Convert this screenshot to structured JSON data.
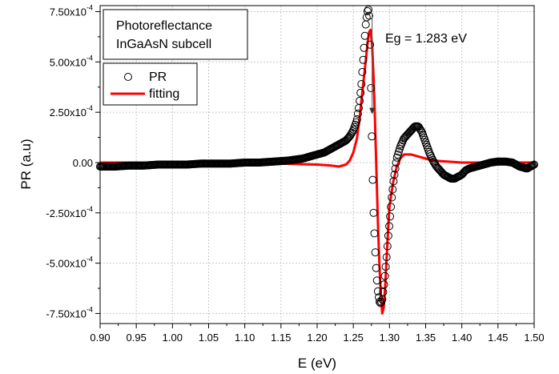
{
  "chart_data": {
    "type": "line",
    "xlabel": "E (eV)",
    "ylabel": "PR (a.u)",
    "xlim": [
      0.9,
      1.5
    ],
    "ylim": [
      -0.0008,
      0.00078
    ],
    "grid": true,
    "x_ticks": [
      0.9,
      0.95,
      1.0,
      1.05,
      1.1,
      1.15,
      1.2,
      1.25,
      1.3,
      1.35,
      1.4,
      1.45,
      1.5
    ],
    "x_tick_labels": [
      "0.90",
      "0.95",
      "1.00",
      "1.05",
      "1.10",
      "1.15",
      "1.20",
      "1.25",
      "1.30",
      "1.35",
      "1.40",
      "1.45",
      "1.50"
    ],
    "y_ticks": [
      -0.00075,
      -0.0005,
      -0.00025,
      0,
      0.00025,
      0.0005,
      0.00075
    ],
    "y_tick_labels": [
      {
        "mant": "-7.50x10",
        "exp": "-4"
      },
      {
        "mant": "-5.00x10",
        "exp": "-4"
      },
      {
        "mant": "-2.50x10",
        "exp": "-4"
      },
      {
        "mant": "0.00",
        "exp": ""
      },
      {
        "mant": "2.50x10",
        "exp": "-4"
      },
      {
        "mant": "5.00x10",
        "exp": "-4"
      },
      {
        "mant": "7.50x10",
        "exp": "-4"
      }
    ],
    "annotation_box": [
      "Photoreflectance",
      "InGaAsN subcell"
    ],
    "eg_annotation": {
      "text": "Eg = 1.283 eV",
      "x": 1.276,
      "y_start": 0.00074,
      "y_end": 0.00024
    },
    "legend_placement": "top-left",
    "series": [
      {
        "name": "PR",
        "style": "open-circle",
        "color": "#000000",
        "x": [
          0.9,
          0.92,
          0.94,
          0.96,
          0.98,
          1.0,
          1.02,
          1.04,
          1.06,
          1.08,
          1.1,
          1.12,
          1.14,
          1.16,
          1.18,
          1.19,
          1.2,
          1.21,
          1.22,
          1.225,
          1.23,
          1.235,
          1.24,
          1.245,
          1.25,
          1.255,
          1.258,
          1.261,
          1.263,
          1.265,
          1.267,
          1.269,
          1.27,
          1.271,
          1.272,
          1.273,
          1.274,
          1.275,
          1.276,
          1.277,
          1.278,
          1.28,
          1.282,
          1.284,
          1.286,
          1.288,
          1.29,
          1.292,
          1.294,
          1.296,
          1.298,
          1.3,
          1.303,
          1.306,
          1.31,
          1.315,
          1.32,
          1.325,
          1.33,
          1.335,
          1.34,
          1.345,
          1.35,
          1.355,
          1.36,
          1.365,
          1.37,
          1.375,
          1.38,
          1.385,
          1.39,
          1.395,
          1.4,
          1.405,
          1.41,
          1.42,
          1.43,
          1.44,
          1.45,
          1.46,
          1.47,
          1.48,
          1.49,
          1.5
        ],
        "y": [
          -2e-05,
          -2e-05,
          -1.5e-05,
          -1.5e-05,
          -1e-05,
          -1e-05,
          -1e-05,
          -5e-06,
          -5e-06,
          -5e-06,
          0,
          0,
          5e-06,
          1e-05,
          2e-05,
          3e-05,
          4e-05,
          5e-05,
          7e-05,
          8e-05,
          9e-05,
          0.0001,
          0.00011,
          0.00013,
          0.00016,
          0.00021,
          0.00028,
          0.00038,
          0.00048,
          0.00058,
          0.00068,
          0.00074,
          0.00076,
          0.00076,
          0.00073,
          0.00062,
          0.00045,
          0.00025,
          5e-05,
          -0.00012,
          -0.00025,
          -0.00042,
          -0.00055,
          -0.00064,
          -0.00069,
          -0.0007,
          -0.00068,
          -0.00062,
          -0.00055,
          -0.00047,
          -0.00038,
          -0.0003,
          -0.00018,
          -8e-05,
          2e-05,
          8e-05,
          0.00012,
          0.00014,
          0.00016,
          0.00018,
          0.00018,
          0.00015,
          0.0001,
          5e-05,
          1e-05,
          -2e-05,
          -4e-05,
          -6e-05,
          -7e-05,
          -8e-05,
          -8e-05,
          -7e-05,
          -6e-05,
          -4e-05,
          -3e-05,
          -2e-05,
          -1e-05,
          0,
          5e-06,
          5e-06,
          0,
          -2e-05,
          -3e-05,
          -1e-05
        ]
      },
      {
        "name": "fitting",
        "style": "line",
        "color": "#ff0000",
        "x": [
          0.9,
          1.0,
          1.1,
          1.15,
          1.2,
          1.22,
          1.23,
          1.24,
          1.245,
          1.25,
          1.255,
          1.258,
          1.261,
          1.264,
          1.267,
          1.27,
          1.272,
          1.274,
          1.276,
          1.278,
          1.28,
          1.282,
          1.284,
          1.286,
          1.288,
          1.29,
          1.292,
          1.294,
          1.296,
          1.298,
          1.3,
          1.305,
          1.31,
          1.315,
          1.32,
          1.33,
          1.34,
          1.35,
          1.36,
          1.38,
          1.4,
          1.42,
          1.45,
          1.5
        ],
        "y": [
          0,
          0,
          -5e-06,
          -5e-06,
          -1e-05,
          -1.5e-05,
          -2e-05,
          -1e-05,
          1e-05,
          5e-05,
          0.00012,
          0.0002,
          0.0003,
          0.0004,
          0.0005,
          0.0006,
          0.00065,
          0.00066,
          0.00058,
          0.00042,
          0.0002,
          -5e-05,
          -0.0003,
          -0.0005,
          -0.00066,
          -0.00075,
          -0.00072,
          -0.00062,
          -0.00048,
          -0.00034,
          -0.00022,
          -0.0001,
          -2e-05,
          2e-05,
          4e-05,
          4e-05,
          3e-05,
          2e-05,
          1e-05,
          5e-06,
          0,
          0,
          0,
          0
        ]
      }
    ]
  }
}
